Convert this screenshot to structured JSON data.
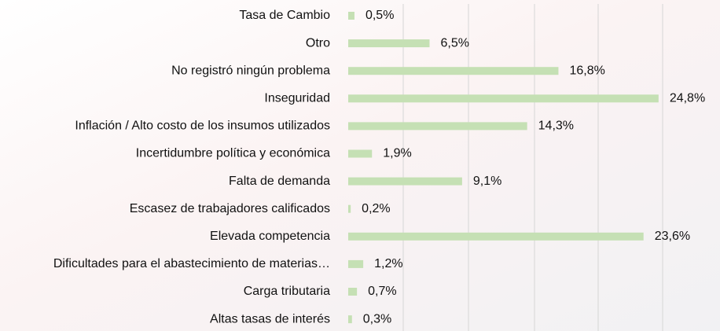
{
  "chart_data": {
    "type": "bar",
    "orientation": "horizontal",
    "categories": [
      "Tasa de Cambio",
      "Otro",
      "No registró ningún problema",
      "Inseguridad",
      "Inflación / Alto costo de los insumos utilizados",
      "Incertidumbre política y económica",
      "Falta de demanda",
      "Escasez de trabajadores calificados",
      "Elevada competencia",
      "Dificultades para el abastecimiento de materias…",
      "Carga tributaria",
      "Altas tasas de interés"
    ],
    "values": [
      0.5,
      6.5,
      16.8,
      24.8,
      14.3,
      1.9,
      9.1,
      0.2,
      23.6,
      1.2,
      0.7,
      0.3
    ],
    "value_labels": [
      "0,5%",
      "6,5%",
      "16,8%",
      "24,8%",
      "14,3%",
      "1,9%",
      "9,1%",
      "0,2%",
      "23,6%",
      "1,2%",
      "0,7%",
      "0,3%"
    ],
    "color": "#c5e0b4",
    "xlim": [
      0,
      25
    ]
  }
}
